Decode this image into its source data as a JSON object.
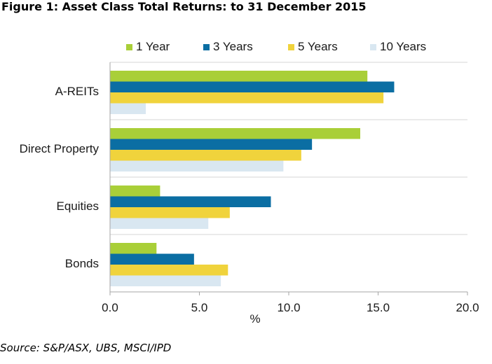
{
  "figure": {
    "title": "Figure 1: Asset Class Total Returns: to 31 December 2015",
    "source": "Source: S&P/ASX, UBS, MSCI/IPD"
  },
  "chart_data": {
    "type": "bar",
    "orientation": "horizontal",
    "title": "",
    "xlabel": "%",
    "ylabel": "",
    "xlim": [
      0,
      20
    ],
    "xticks": [
      0,
      5,
      10,
      15,
      20
    ],
    "xtick_labels": [
      "0.0",
      "5.0",
      "10.0",
      "15.0",
      "20.0"
    ],
    "categories": [
      "A-REITs",
      "Direct Property",
      "Equities",
      "Bonds"
    ],
    "legend_position": "top",
    "grid": "horizontal separators between categories",
    "series": [
      {
        "name": "1 Year",
        "color": "#a9cf38",
        "values": [
          14.4,
          14.0,
          2.8,
          2.6
        ]
      },
      {
        "name": "3 Years",
        "color": "#0b6ea3",
        "values": [
          15.9,
          11.3,
          9.0,
          4.7
        ]
      },
      {
        "name": "5 Years",
        "color": "#f0d33c",
        "values": [
          15.3,
          10.7,
          6.7,
          6.6
        ]
      },
      {
        "name": "10 Years",
        "color": "#d9e7f1",
        "values": [
          2.0,
          9.7,
          5.5,
          6.2
        ]
      }
    ]
  }
}
